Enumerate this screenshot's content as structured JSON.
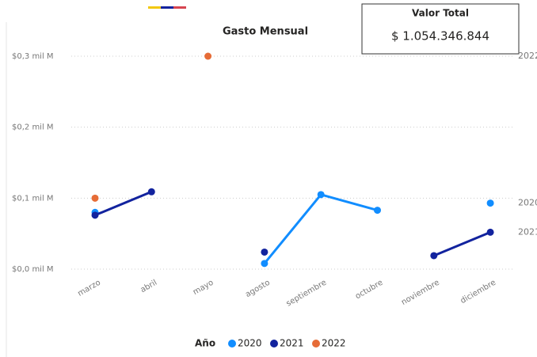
{
  "chart_data": {
    "type": "line",
    "title": "Gasto Mensual",
    "categories": [
      "marzo",
      "abril",
      "mayo",
      "agosto",
      "septiembre",
      "octubre",
      "noviembre",
      "diciembre"
    ],
    "series": [
      {
        "name": "2020",
        "color": "#118DFF",
        "values": [
          0.08,
          null,
          null,
          0.008,
          0.105,
          0.083,
          null,
          0.093
        ]
      },
      {
        "name": "2021",
        "color": "#12239E",
        "values": [
          0.076,
          0.109,
          null,
          0.024,
          null,
          null,
          0.019,
          0.052
        ]
      },
      {
        "name": "2022",
        "color": "#E66C37",
        "values": [
          0.1,
          null,
          0.3,
          null,
          null,
          null,
          null,
          null
        ]
      }
    ],
    "ylim": [
      0,
      0.3
    ],
    "yticks": [
      {
        "value": 0,
        "label": "$0,0 mil M"
      },
      {
        "value": 0.1,
        "label": "$0,1 mil M"
      },
      {
        "value": 0.2,
        "label": "$0,2 mil M"
      },
      {
        "value": 0.3,
        "label": "$0,3 mil M"
      }
    ],
    "grid": true,
    "legend_title": "Año",
    "legend_position": "bottom"
  },
  "card": {
    "title": "Valor Total",
    "value": "$ 1.054.346.844"
  }
}
